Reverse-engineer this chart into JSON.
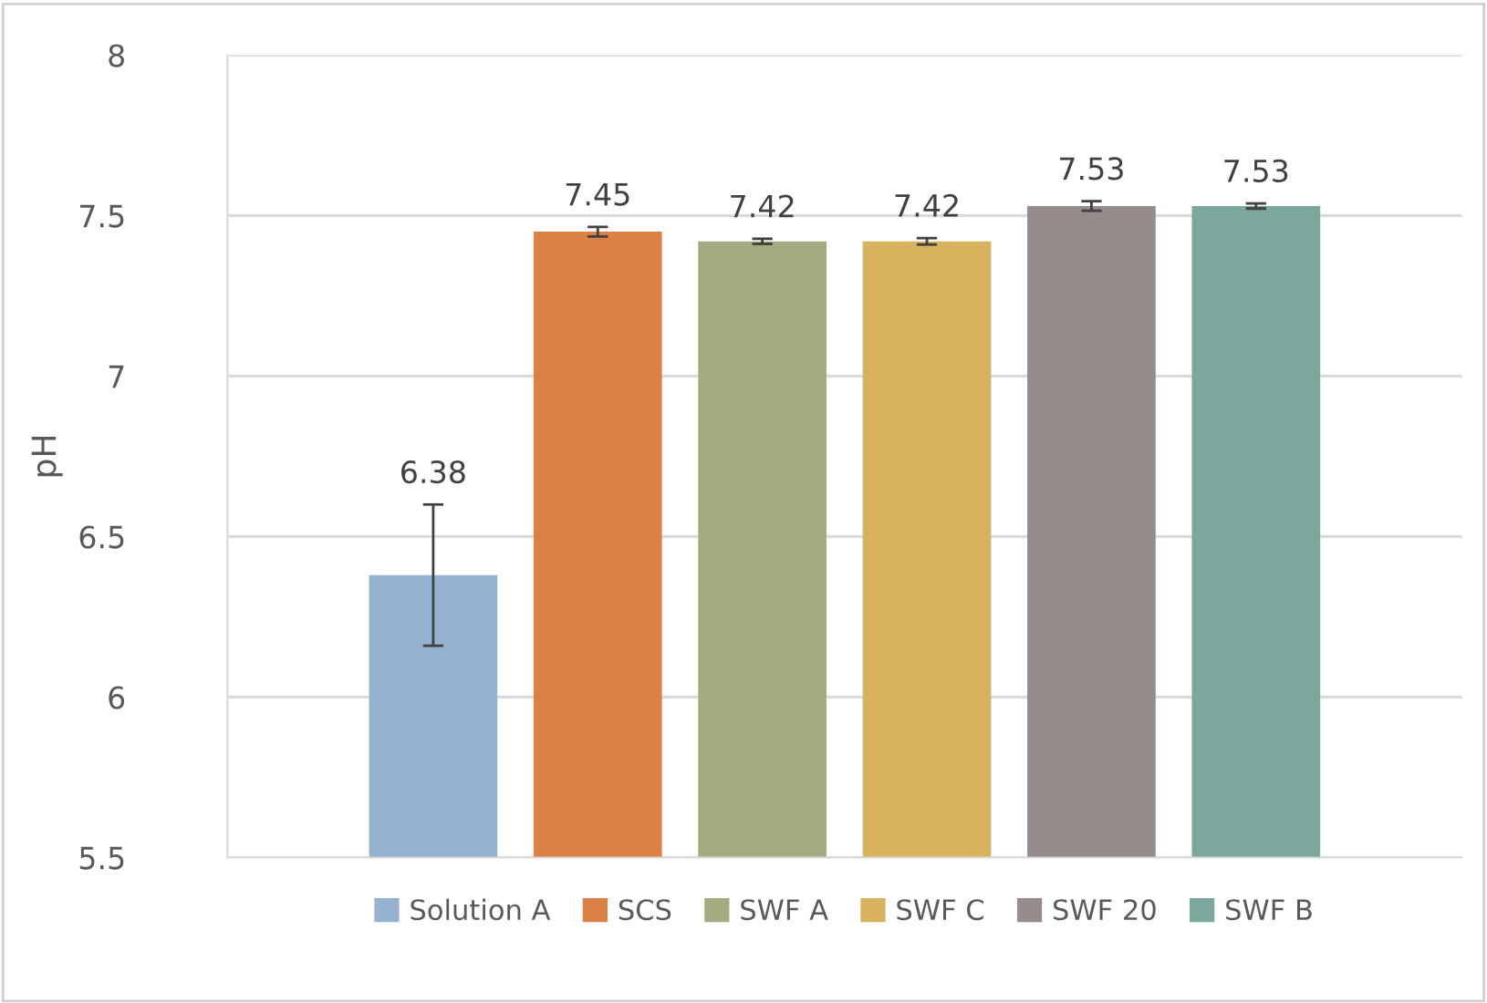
{
  "chart_data": {
    "type": "bar",
    "ylabel": "pH",
    "categories": [
      null
    ],
    "series": [
      {
        "name": "Solution A",
        "color": "#95b3d1",
        "values": [
          6.38
        ],
        "errors": [
          0.22
        ]
      },
      {
        "name": "SCS",
        "color": "#dd8047",
        "values": [
          7.45
        ],
        "errors": [
          0.015
        ]
      },
      {
        "name": "SWF A",
        "color": "#a5ab81",
        "values": [
          7.42
        ],
        "errors": [
          0.008
        ]
      },
      {
        "name": "SWF C",
        "color": "#d8b25c",
        "values": [
          7.42
        ],
        "errors": [
          0.01
        ]
      },
      {
        "name": "SWF 20",
        "color": "#968c8c",
        "values": [
          7.53
        ],
        "errors": [
          0.015
        ]
      },
      {
        "name": "SWF B",
        "color": "#7ba79d",
        "values": [
          7.53
        ],
        "errors": [
          0.008
        ]
      }
    ],
    "ylim": [
      5.5,
      8
    ],
    "yticks": [
      5.5,
      6,
      6.5,
      7,
      7.5,
      8
    ],
    "grid": "y",
    "legend": "bottom",
    "data_labels": true
  }
}
